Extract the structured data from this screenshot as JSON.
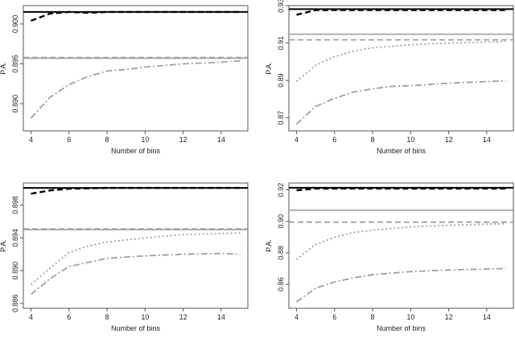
{
  "chart_data": [
    {
      "type": "line",
      "xlabel": "Number of bins",
      "ylabel": "P.A.",
      "xlim": [
        3.6,
        15.4
      ],
      "ylim": [
        0.8866,
        0.9023
      ],
      "xticks": [
        4,
        6,
        8,
        10,
        12,
        14
      ],
      "yticks": [
        0.89,
        0.895,
        0.9
      ],
      "ytick_labels": [
        "0.890",
        "0.895",
        "0.900"
      ],
      "series": [
        {
          "name": "solid-black",
          "style": "solid-black",
          "x": [
            3.6,
            15.4
          ],
          "y": [
            0.9015,
            0.9015
          ]
        },
        {
          "name": "dashed-black",
          "style": "dashed-black",
          "x": [
            4,
            5,
            6,
            7,
            8,
            9,
            10,
            11,
            12,
            13,
            14,
            15
          ],
          "y": [
            0.9004,
            0.9013,
            0.9015,
            0.9014,
            0.9015,
            0.9015,
            0.9015,
            0.9015,
            0.9015,
            0.9015,
            0.9015,
            0.9015
          ]
        },
        {
          "name": "solid-gray",
          "style": "solid-gray",
          "x": [
            3.6,
            15.4
          ],
          "y": [
            0.8957,
            0.8957
          ]
        },
        {
          "name": "dashed-gray",
          "style": "dashed-gray",
          "x": [
            3.6,
            15.4
          ],
          "y": [
            0.8958,
            0.8958
          ]
        },
        {
          "name": "dashdot-gray",
          "style": "dashdot-gray",
          "x": [
            4,
            5,
            6,
            7,
            8,
            9,
            10,
            11,
            12,
            13,
            14,
            15
          ],
          "y": [
            0.8882,
            0.8908,
            0.8924,
            0.8934,
            0.8941,
            0.8943,
            0.8946,
            0.8948,
            0.895,
            0.8951,
            0.8952,
            0.8954
          ]
        }
      ]
    },
    {
      "type": "line",
      "xlabel": "Number of bins",
      "ylabel": "P.A.",
      "xlim": [
        3.6,
        15.4
      ],
      "ylim": [
        0.863,
        0.93
      ],
      "xticks": [
        4,
        6,
        8,
        10,
        12,
        14
      ],
      "yticks": [
        0.87,
        0.89,
        0.91,
        0.93
      ],
      "ytick_labels": [
        "0.87",
        "0.89",
        "0.91",
        "0.93"
      ],
      "series": [
        {
          "name": "solid-black",
          "style": "solid-black",
          "x": [
            3.6,
            15.4
          ],
          "y": [
            0.9281,
            0.9281
          ]
        },
        {
          "name": "dashed-black",
          "style": "dashed-black",
          "x": [
            4,
            5,
            6,
            8,
            10,
            12,
            15
          ],
          "y": [
            0.9251,
            0.9276,
            0.9276,
            0.9276,
            0.9276,
            0.9276,
            0.9276
          ]
        },
        {
          "name": "solid-gray",
          "style": "solid-gray",
          "x": [
            3.6,
            15.4
          ],
          "y": [
            0.9147,
            0.9147
          ]
        },
        {
          "name": "dashed-gray",
          "style": "dashed-gray",
          "x": [
            3.6,
            15.4
          ],
          "y": [
            0.9117,
            0.9117
          ]
        },
        {
          "name": "dotted-gray",
          "style": "dotted-gray",
          "x": [
            4,
            5,
            6,
            7,
            8,
            10,
            12,
            15
          ],
          "y": [
            0.8894,
            0.898,
            0.9027,
            0.9057,
            0.9074,
            0.9091,
            0.91,
            0.9108
          ]
        },
        {
          "name": "dashdot-gray",
          "style": "dashdot-gray",
          "x": [
            4,
            5,
            6,
            7,
            8,
            9,
            10,
            12,
            15
          ],
          "y": [
            0.8666,
            0.876,
            0.8804,
            0.8838,
            0.8855,
            0.8868,
            0.8872,
            0.8885,
            0.8898
          ]
        }
      ]
    },
    {
      "type": "line",
      "xlabel": "Number of bins",
      "ylabel": "P.A.",
      "xlim": [
        3.6,
        15.4
      ],
      "ylim": [
        0.8854,
        0.9007
      ],
      "xticks": [
        4,
        6,
        8,
        10,
        12,
        14
      ],
      "yticks": [
        0.886,
        0.89,
        0.894,
        0.898
      ],
      "ytick_labels": [
        "0.886",
        "0.890",
        "0.894",
        "0.898"
      ],
      "series": [
        {
          "name": "solid-black",
          "style": "solid-black",
          "x": [
            3.6,
            15.4
          ],
          "y": [
            0.9001,
            0.9001
          ]
        },
        {
          "name": "dashed-black",
          "style": "dashed-black",
          "x": [
            4,
            5,
            6,
            8,
            10,
            12,
            15
          ],
          "y": [
            0.8994,
            0.8998,
            0.9,
            0.9001,
            0.9001,
            0.9001,
            0.9001
          ]
        },
        {
          "name": "solid-gray",
          "style": "solid-gray",
          "x": [
            3.6,
            15.4
          ],
          "y": [
            0.895,
            0.895
          ]
        },
        {
          "name": "dashed-gray",
          "style": "dashed-gray",
          "x": [
            3.6,
            15.4
          ],
          "y": [
            0.8951,
            0.8951
          ]
        },
        {
          "name": "dotted-gray",
          "style": "dotted-gray",
          "x": [
            4,
            5,
            6,
            7,
            8,
            10,
            12,
            15
          ],
          "y": [
            0.8883,
            0.8903,
            0.8922,
            0.893,
            0.8935,
            0.894,
            0.8944,
            0.8946
          ]
        },
        {
          "name": "dashdot-gray",
          "style": "dashdot-gray",
          "x": [
            4,
            5,
            6,
            7,
            8,
            10,
            12,
            14,
            15
          ],
          "y": [
            0.8871,
            0.889,
            0.8905,
            0.891,
            0.8915,
            0.8918,
            0.892,
            0.8921,
            0.892
          ]
        }
      ]
    },
    {
      "type": "line",
      "xlabel": "Number of bins",
      "ylabel": "P.A.",
      "xlim": [
        3.6,
        15.4
      ],
      "ylim": [
        0.8448,
        0.9243
      ],
      "xticks": [
        4,
        6,
        8,
        10,
        12,
        14
      ],
      "yticks": [
        0.86,
        0.88,
        0.9,
        0.92
      ],
      "ytick_labels": [
        "0.86",
        "0.88",
        "0.90",
        "0.92"
      ],
      "series": [
        {
          "name": "solid-black",
          "style": "solid-black",
          "x": [
            3.6,
            15.4
          ],
          "y": [
            0.9213,
            0.9213
          ]
        },
        {
          "name": "dashed-black",
          "style": "dashed-black",
          "x": [
            4,
            5,
            6,
            8,
            10,
            12,
            15
          ],
          "y": [
            0.9197,
            0.9208,
            0.9208,
            0.9208,
            0.9208,
            0.9208,
            0.9208
          ]
        },
        {
          "name": "solid-gray",
          "style": "solid-gray",
          "x": [
            3.6,
            15.4
          ],
          "y": [
            0.9071,
            0.9071
          ]
        },
        {
          "name": "dashed-gray",
          "style": "dashed-gray",
          "x": [
            3.6,
            15.4
          ],
          "y": [
            0.8995,
            0.8995
          ]
        },
        {
          "name": "dotted-gray",
          "style": "dotted-gray",
          "x": [
            4,
            5,
            6,
            7,
            8,
            10,
            12,
            15
          ],
          "y": [
            0.8757,
            0.8853,
            0.8899,
            0.8929,
            0.8944,
            0.8965,
            0.8975,
            0.8985
          ]
        },
        {
          "name": "dashdot-gray",
          "style": "dashdot-gray",
          "x": [
            4,
            5,
            6,
            7,
            8,
            10,
            12,
            15
          ],
          "y": [
            0.8489,
            0.8575,
            0.8615,
            0.8641,
            0.8661,
            0.8681,
            0.8691,
            0.8701
          ]
        }
      ]
    }
  ]
}
